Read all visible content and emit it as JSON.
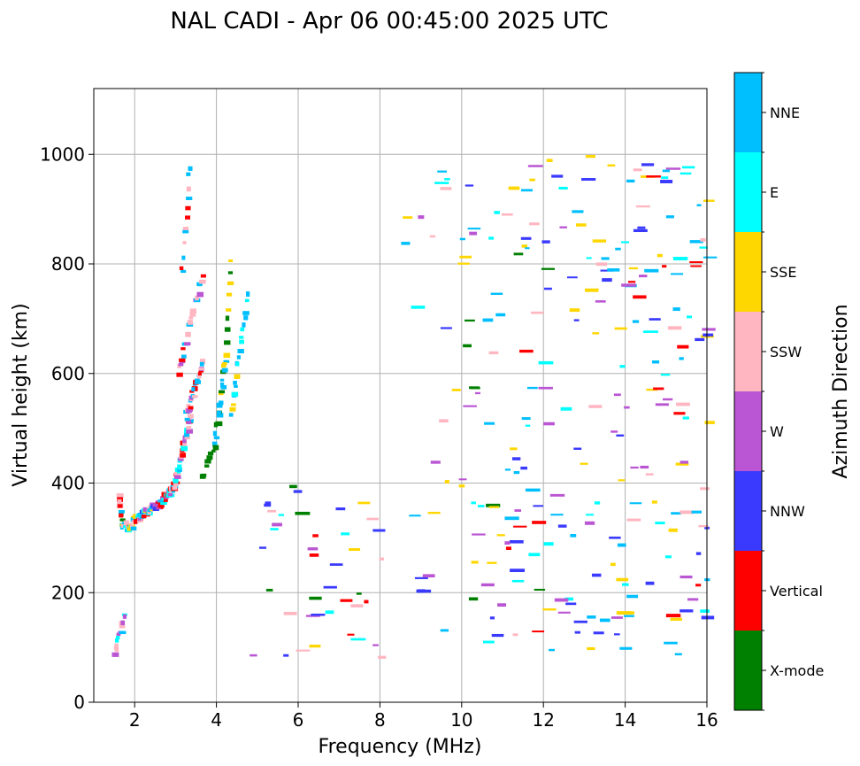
{
  "chart_data": {
    "type": "scatter",
    "title": "NAL CADI - Apr 06 00:45:00 2025 UTC",
    "xlabel": "Frequency (MHz)",
    "ylabel": "Virtual height (km)",
    "xlim": [
      1.0,
      16.0
    ],
    "ylim": [
      0,
      1120
    ],
    "xticks": [
      2,
      4,
      6,
      8,
      10,
      12,
      14,
      16
    ],
    "yticks": [
      0,
      200,
      400,
      600,
      800,
      1000
    ],
    "grid": true,
    "colorbar": {
      "label": "Azimuth Direction",
      "categories": [
        {
          "name": "X-mode",
          "color": "#008000"
        },
        {
          "name": "Vertical",
          "color": "#ff0000"
        },
        {
          "name": "NNW",
          "color": "#3a3aff"
        },
        {
          "name": "W",
          "color": "#ba55d3"
        },
        {
          "name": "SSW",
          "color": "#ffb6c1"
        },
        {
          "name": "SSE",
          "color": "#ffd700"
        },
        {
          "name": "E",
          "color": "#00ffff"
        },
        {
          "name": "NNE",
          "color": "#00bfff"
        }
      ]
    },
    "trace_segments": [
      {
        "x0": 1.55,
        "x1": 1.62,
        "y0": 380,
        "y1": 330,
        "colors": [
          "X-mode",
          "E",
          "NNE",
          "SSW",
          "Vertical"
        ],
        "n": 10
      },
      {
        "x0": 1.62,
        "x1": 1.9,
        "y0": 325,
        "y1": 315,
        "colors": [
          "Vertical",
          "SSW",
          "E",
          "NNE",
          "SSE"
        ],
        "n": 16
      },
      {
        "x0": 1.9,
        "x1": 2.5,
        "y0": 330,
        "y1": 360,
        "colors": [
          "Vertical",
          "SSW",
          "E",
          "NNE",
          "SSE",
          "W",
          "NNW"
        ],
        "n": 40
      },
      {
        "x0": 2.5,
        "x1": 2.9,
        "y0": 360,
        "y1": 390,
        "colors": [
          "Vertical",
          "SSW",
          "E",
          "NNE",
          "W"
        ],
        "n": 30
      },
      {
        "x0": 2.9,
        "x1": 3.3,
        "y0": 390,
        "y1": 520,
        "colors": [
          "Vertical",
          "SSW",
          "NNE",
          "W",
          "E"
        ],
        "n": 40
      },
      {
        "x0": 3.2,
        "x1": 3.6,
        "y0": 520,
        "y1": 620,
        "colors": [
          "Vertical",
          "SSW",
          "NNE",
          "W"
        ],
        "n": 30
      },
      {
        "x0": 3.6,
        "x1": 3.9,
        "y0": 410,
        "y1": 470,
        "colors": [
          "X-mode"
        ],
        "n": 8
      },
      {
        "x0": 3.9,
        "x1": 4.15,
        "y0": 470,
        "y1": 620,
        "colors": [
          "X-mode",
          "NNE",
          "SSE"
        ],
        "n": 20
      },
      {
        "x0": 4.15,
        "x1": 4.3,
        "y0": 620,
        "y1": 800,
        "colors": [
          "X-mode",
          "SSE"
        ],
        "n": 10
      },
      {
        "x0": 3.0,
        "x1": 3.6,
        "y0": 600,
        "y1": 780,
        "colors": [
          "Vertical",
          "SSW",
          "W",
          "NNE"
        ],
        "n": 25
      },
      {
        "x0": 3.1,
        "x1": 3.3,
        "y0": 780,
        "y1": 980,
        "colors": [
          "Vertical",
          "SSW",
          "NNE"
        ],
        "n": 12
      },
      {
        "x0": 4.3,
        "x1": 4.7,
        "y0": 520,
        "y1": 740,
        "colors": [
          "SSE",
          "E",
          "NNE"
        ],
        "n": 20
      },
      {
        "x0": 1.45,
        "x1": 1.7,
        "y0": 90,
        "y1": 160,
        "colors": [
          "NNE",
          "E",
          "SSW",
          "W"
        ],
        "n": 14
      }
    ],
    "scatter_bands": [
      {
        "x0": 4.8,
        "x1": 8.0,
        "y0": 80,
        "y1": 400,
        "n": 40,
        "colors": [
          "Vertical",
          "W",
          "NNW",
          "E",
          "SSE",
          "SSW",
          "X-mode"
        ]
      },
      {
        "x0": 8.5,
        "x1": 10.0,
        "y0": 90,
        "y1": 1000,
        "n": 26,
        "colors": [
          "SSE",
          "SSW",
          "W",
          "E",
          "NNW",
          "NNE"
        ]
      },
      {
        "x0": 10.0,
        "x1": 12.0,
        "y0": 85,
        "y1": 990,
        "n": 70,
        "colors": [
          "SSE",
          "SSW",
          "W",
          "NNW",
          "NNE",
          "E",
          "X-mode",
          "Vertical"
        ]
      },
      {
        "x0": 12.0,
        "x1": 14.0,
        "y0": 85,
        "y1": 1000,
        "n": 70,
        "colors": [
          "SSE",
          "SSW",
          "W",
          "E",
          "NNE",
          "NNW"
        ]
      },
      {
        "x0": 14.0,
        "x1": 16.0,
        "y0": 85,
        "y1": 990,
        "n": 85,
        "colors": [
          "SSE",
          "SSW",
          "W",
          "E",
          "Vertical",
          "NNW",
          "NNE"
        ]
      }
    ]
  }
}
